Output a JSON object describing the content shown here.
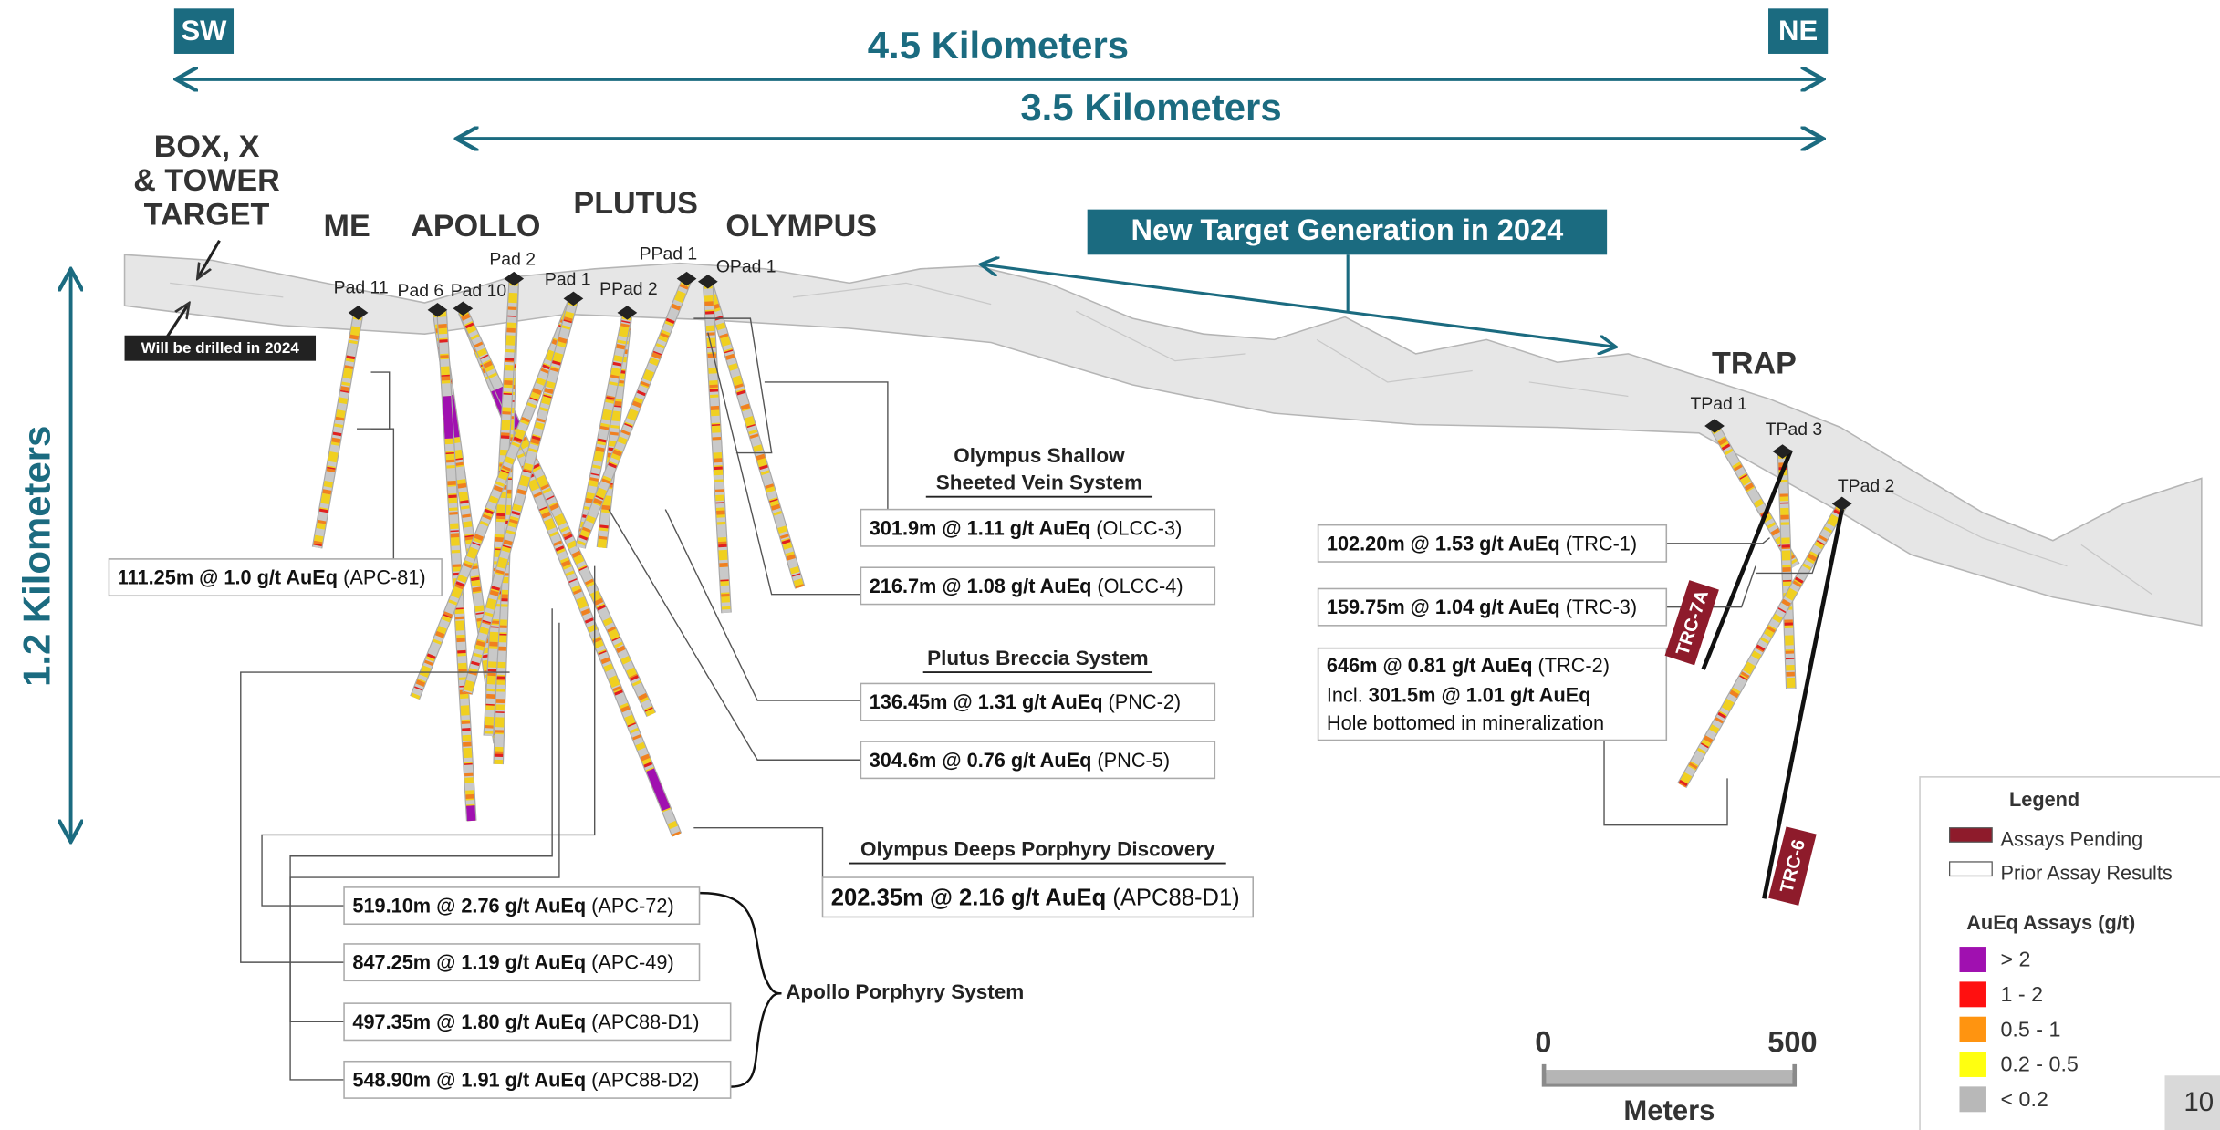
{
  "header": {
    "sw": "SW",
    "ne": "NE",
    "span_outer": "4.5 Kilometers",
    "span_inner": "3.5 Kilometers",
    "depth": "1.2 Kilometers"
  },
  "box_target": [
    "BOX, X",
    "& TOWER",
    "TARGET"
  ],
  "note": "Will be drilled in 2024",
  "targets": [
    "ME",
    "APOLLO",
    "PLUTUS",
    "OLYMPUS",
    "TRAP"
  ],
  "banner": "New Target Generation in 2024",
  "pads": [
    "Pad 11",
    "Pad 6",
    "Pad 10",
    "Pad 2",
    "Pad 1",
    "PPad 2",
    "PPad 1",
    "OPad 1",
    "TPad 1",
    "TPad 3",
    "TPad 2"
  ],
  "systems": {
    "olympus_shallow": [
      "Olympus Shallow",
      "Sheeted Vein System"
    ],
    "plutus": "Plutus Breccia System",
    "olympus_deeps": "Olympus Deeps Porphyry Discovery",
    "apollo": "Apollo Porphyry System"
  },
  "intercepts": [
    {
      "grade": "111.25m @ 1.0 g/t AuEq",
      "hole": "(APC-81)"
    },
    {
      "grade": "301.9m @ 1.11 g/t AuEq",
      "hole": "(OLCC-3)"
    },
    {
      "grade": "216.7m @ 1.08 g/t AuEq",
      "hole": "(OLCC-4)"
    },
    {
      "grade": "136.45m @ 1.31 g/t AuEq",
      "hole": "(PNC-2)"
    },
    {
      "grade": "304.6m @ 0.76 g/t AuEq",
      "hole": "(PNC-5)"
    },
    {
      "grade": "202.35m @ 2.16 g/t AuEq",
      "hole": "(APC88-D1)"
    },
    {
      "grade": "519.10m @ 2.76 g/t AuEq",
      "hole": "(APC-72)"
    },
    {
      "grade": "847.25m @ 1.19 g/t AuEq",
      "hole": "(APC-49)"
    },
    {
      "grade": "497.35m @ 1.80 g/t AuEq",
      "hole": "(APC88-D1)"
    },
    {
      "grade": "548.90m @ 1.91 g/t AuEq",
      "hole": "(APC88-D2)"
    },
    {
      "grade": "102.20m @ 1.53 g/t AuEq",
      "hole": "(TRC-1)"
    },
    {
      "grade": "159.75m @ 1.04 g/t AuEq",
      "hole": "(TRC-3)"
    }
  ],
  "trc2": {
    "grade": "646m @ 0.81 g/t AuEq",
    "hole": "(TRC-2)",
    "incl_prefix": "Incl.",
    "incl": "301.5m @ 1.01 g/t AuEq",
    "note": "Hole bottomed in mineralization"
  },
  "pending": [
    "TRC-7A",
    "TRC-6"
  ],
  "legend": {
    "title": "Legend",
    "items": [
      {
        "label": "Assays Pending",
        "color": "#8e1b2b"
      },
      {
        "label": "Prior Assay Results",
        "color": "#ffffff"
      }
    ],
    "assay_title": "AuEq Assays (g/t)",
    "classes": [
      {
        "label": "> 2",
        "color": "#a010b0"
      },
      {
        "label": "1 - 2",
        "color": "#ff1010"
      },
      {
        "label": "0.5 - 1",
        "color": "#ff9410"
      },
      {
        "label": "0.2 - 0.5",
        "color": "#ffff10"
      },
      {
        "label": "< 0.2",
        "color": "#b8b8b8"
      }
    ]
  },
  "scale": {
    "start": "0",
    "end": "500",
    "unit": "Meters"
  },
  "page_number": "10"
}
